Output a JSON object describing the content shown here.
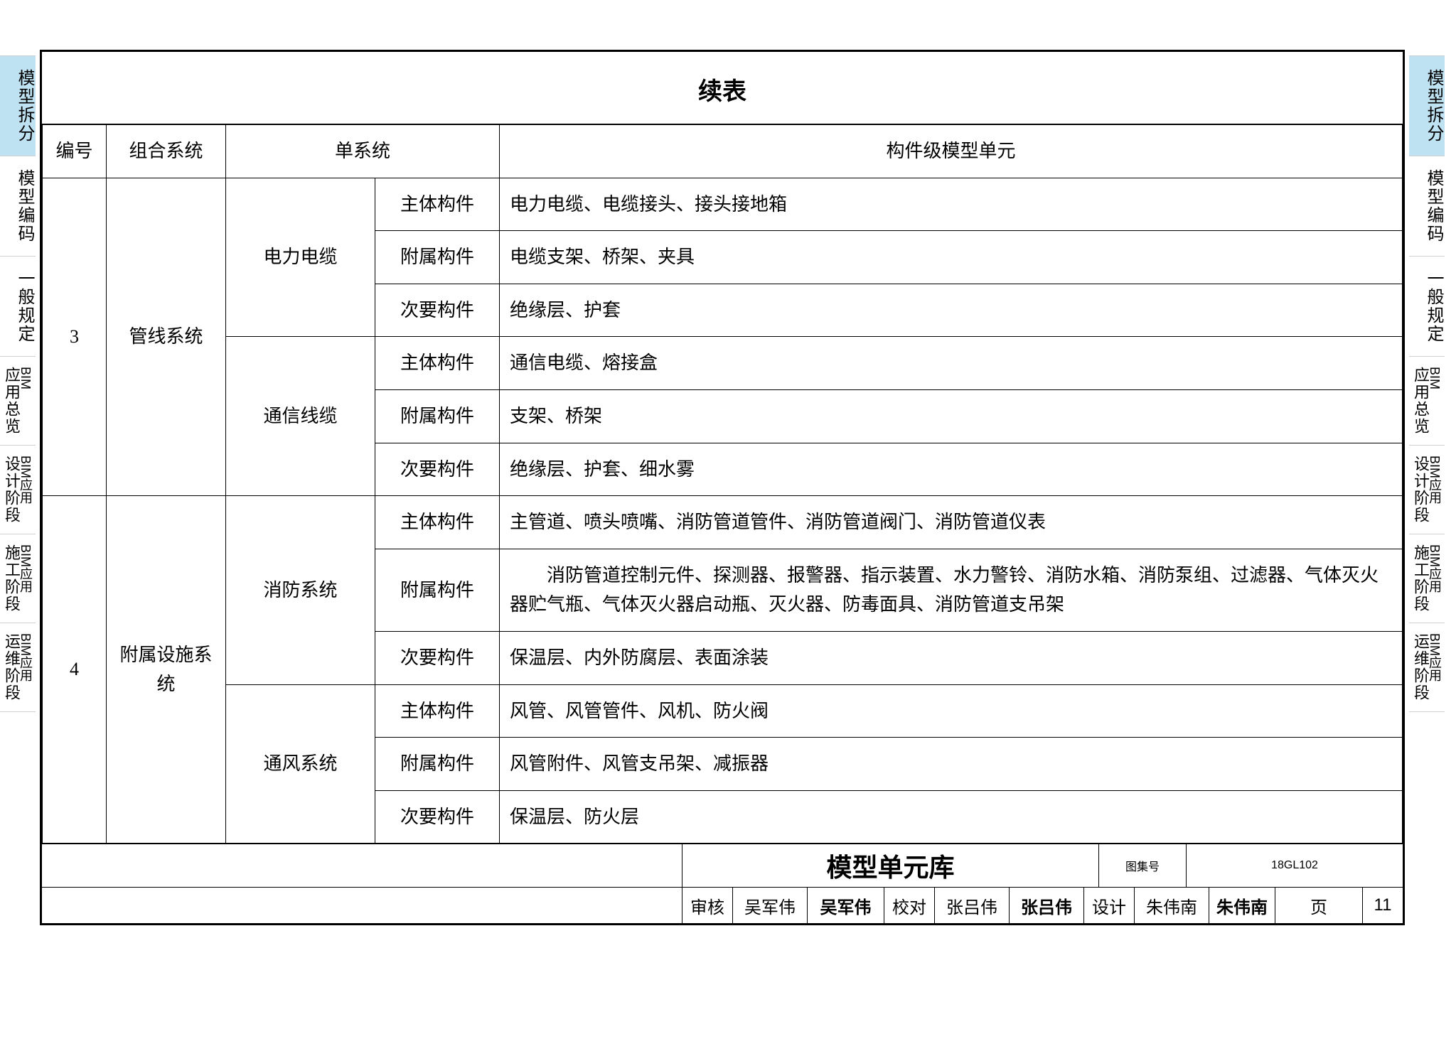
{
  "side_tabs": [
    {
      "label": "模型拆分",
      "active": true
    },
    {
      "label": "模型编码",
      "active": false
    },
    {
      "label": "一般规定",
      "active": false
    },
    {
      "label_main": "应用总览",
      "label_sup": "BIM",
      "double": true
    },
    {
      "label_main": "设计阶段",
      "label_sup": "BIM应用",
      "double": true
    },
    {
      "label_main": "施工阶段",
      "label_sup": "BIM应用",
      "double": true
    },
    {
      "label_main": "运维阶段",
      "label_sup": "BIM应用",
      "double": true
    }
  ],
  "title": "续表",
  "headers": {
    "col1": "编号",
    "col2": "组合系统",
    "col3": "单系统",
    "col5": "构件级模型单元"
  },
  "groups": [
    {
      "num": "3",
      "combo": "管线系统",
      "subs": [
        {
          "name": "电力电缆",
          "rows": [
            {
              "lvl": "主体构件",
              "items": "电力电缆、电缆接头、接头接地箱"
            },
            {
              "lvl": "附属构件",
              "items": "电缆支架、桥架、夹具"
            },
            {
              "lvl": "次要构件",
              "items": "绝缘层、护套"
            }
          ]
        },
        {
          "name": "通信线缆",
          "rows": [
            {
              "lvl": "主体构件",
              "items": "通信电缆、熔接盒"
            },
            {
              "lvl": "附属构件",
              "items": "支架、桥架"
            },
            {
              "lvl": "次要构件",
              "items": "绝缘层、护套、细水雾"
            }
          ]
        }
      ]
    },
    {
      "num": "4",
      "combo": "附属设施系统",
      "subs": [
        {
          "name": "消防系统",
          "rows": [
            {
              "lvl": "主体构件",
              "items": "主管道、喷头喷嘴、消防管道管件、消防管道阀门、消防管道仪表"
            },
            {
              "lvl": "附属构件",
              "items": "　　消防管道控制元件、探测器、报警器、指示装置、水力警铃、消防水箱、消防泵组、过滤器、气体灭火器贮气瓶、气体灭火器启动瓶、灭火器、防毒面具、消防管道支吊架"
            },
            {
              "lvl": "次要构件",
              "items": "保温层、内外防腐层、表面涂装"
            }
          ]
        },
        {
          "name": "通风系统",
          "rows": [
            {
              "lvl": "主体构件",
              "items": "风管、风管管件、风机、防火阀"
            },
            {
              "lvl": "附属构件",
              "items": "风管附件、风管支吊架、减振器"
            },
            {
              "lvl": "次要构件",
              "items": "保温层、防火层"
            }
          ]
        }
      ]
    }
  ],
  "footer": {
    "lib_title": "模型单元库",
    "atlas_label": "图集号",
    "atlas_no": "18GL102",
    "page_label": "页",
    "page_no": "11",
    "review_label": "审核",
    "review_name": "吴军伟",
    "review_sig": "吴军伟",
    "check_label": "校对",
    "check_name": "张吕伟",
    "check_sig": "张吕伟",
    "design_label": "设计",
    "design_name": "朱伟南",
    "design_sig": "朱伟南"
  }
}
